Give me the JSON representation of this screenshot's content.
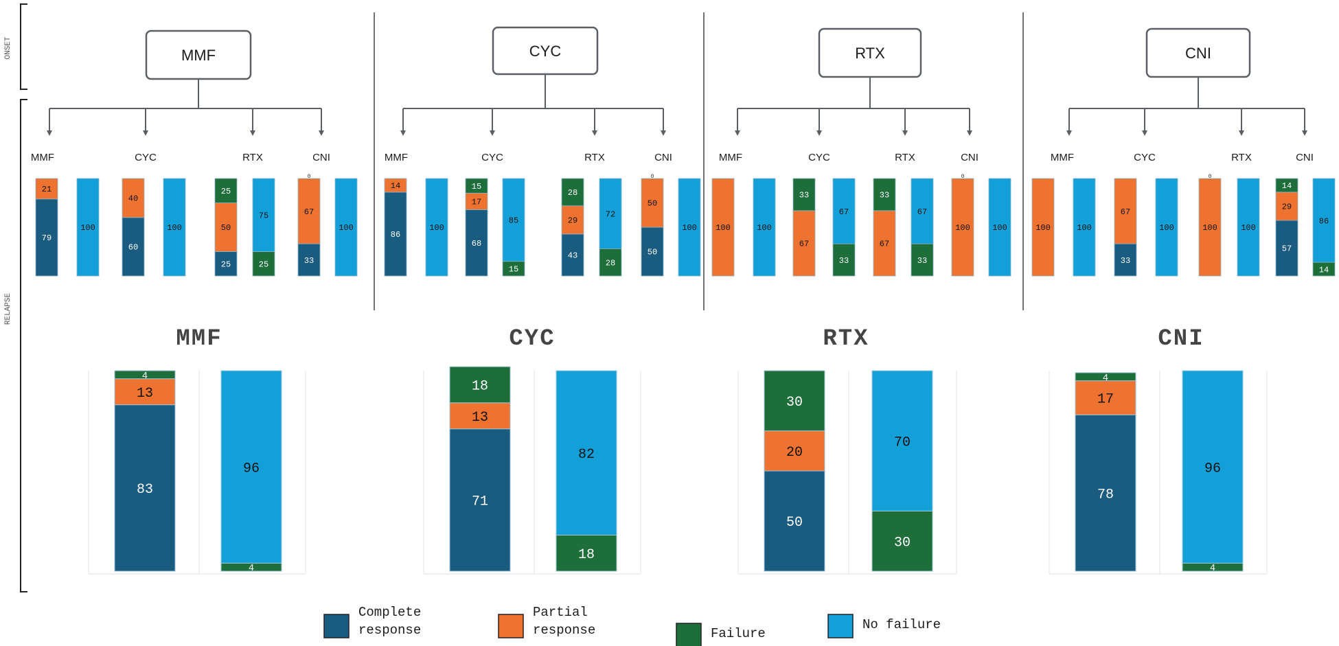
{
  "side_labels": {
    "onset": "ONSET",
    "relapse": "RELAPSE"
  },
  "colors": {
    "complete": "#1a5b80",
    "partial": "#ee7330",
    "failure": "#1e6e3a",
    "nofailure": "#13a0d8",
    "line": "#5a5f66"
  },
  "legend": [
    {
      "key": "complete",
      "lines": [
        "Complete",
        "response"
      ]
    },
    {
      "key": "partial",
      "lines": [
        "Partial",
        "response"
      ]
    },
    {
      "key": "failure",
      "lines": [
        "Failure"
      ]
    },
    {
      "key": "nofailure",
      "lines": [
        "No failure"
      ]
    }
  ],
  "chart_data": [
    {
      "type": "bar",
      "stacked": true,
      "level": "relapse-by-drug",
      "onset_drug": "MMF",
      "categories": [
        "MMF",
        "CYC",
        "RTX",
        "CNI"
      ],
      "bars": [
        [
          {
            "k": "complete",
            "v": 79
          },
          {
            "k": "partial",
            "v": 21
          }
        ],
        [
          {
            "k": "nofailure",
            "v": 100
          }
        ],
        [
          {
            "k": "complete",
            "v": 60
          },
          {
            "k": "partial",
            "v": 40
          }
        ],
        [
          {
            "k": "nofailure",
            "v": 100
          }
        ],
        [
          {
            "k": "complete",
            "v": 25
          },
          {
            "k": "partial",
            "v": 50
          },
          {
            "k": "failure",
            "v": 25
          }
        ],
        [
          {
            "k": "failure",
            "v": 25
          },
          {
            "k": "nofailure",
            "v": 75
          }
        ],
        [
          {
            "k": "complete",
            "v": 33
          },
          {
            "k": "partial",
            "v": 67
          },
          {
            "k": "failure",
            "v": 0
          }
        ],
        [
          {
            "k": "failure",
            "v": 0
          },
          {
            "k": "nofailure",
            "v": 100
          }
        ]
      ]
    },
    {
      "type": "bar",
      "stacked": true,
      "level": "relapse-by-drug",
      "onset_drug": "CYC",
      "categories": [
        "MMF",
        "CYC",
        "RTX",
        "CNI"
      ],
      "bars": [
        [
          {
            "k": "complete",
            "v": 86
          },
          {
            "k": "partial",
            "v": 14
          }
        ],
        [
          {
            "k": "nofailure",
            "v": 100
          }
        ],
        [
          {
            "k": "complete",
            "v": 68
          },
          {
            "k": "partial",
            "v": 17
          },
          {
            "k": "failure",
            "v": 15
          }
        ],
        [
          {
            "k": "failure",
            "v": 15
          },
          {
            "k": "nofailure",
            "v": 85
          }
        ],
        [
          {
            "k": "complete",
            "v": 43
          },
          {
            "k": "partial",
            "v": 29
          },
          {
            "k": "failure",
            "v": 28
          }
        ],
        [
          {
            "k": "failure",
            "v": 28
          },
          {
            "k": "nofailure",
            "v": 72
          }
        ],
        [
          {
            "k": "complete",
            "v": 50
          },
          {
            "k": "partial",
            "v": 50
          },
          {
            "k": "failure",
            "v": 0
          }
        ],
        [
          {
            "k": "failure",
            "v": 0
          },
          {
            "k": "nofailure",
            "v": 100
          }
        ]
      ]
    },
    {
      "type": "bar",
      "stacked": true,
      "level": "relapse-by-drug",
      "onset_drug": "RTX",
      "categories": [
        "MMF",
        "CYC",
        "RTX",
        "CNI"
      ],
      "bars": [
        [
          {
            "k": "partial",
            "v": 100
          }
        ],
        [
          {
            "k": "nofailure",
            "v": 100
          }
        ],
        [
          {
            "k": "partial",
            "v": 67
          },
          {
            "k": "failure",
            "v": 33
          }
        ],
        [
          {
            "k": "failure",
            "v": 33
          },
          {
            "k": "nofailure",
            "v": 67
          }
        ],
        [
          {
            "k": "complete",
            "v": 0
          },
          {
            "k": "partial",
            "v": 67
          },
          {
            "k": "failure",
            "v": 33
          }
        ],
        [
          {
            "k": "failure",
            "v": 33
          },
          {
            "k": "nofailure",
            "v": 67
          }
        ],
        [
          {
            "k": "complete",
            "v": 0
          },
          {
            "k": "partial",
            "v": 100
          },
          {
            "k": "failure",
            "v": 0
          }
        ],
        [
          {
            "k": "failure",
            "v": 0
          },
          {
            "k": "nofailure",
            "v": 100
          }
        ]
      ]
    },
    {
      "type": "bar",
      "stacked": true,
      "level": "relapse-by-drug",
      "onset_drug": "CNI",
      "categories": [
        "MMF",
        "CYC",
        "RTX",
        "CNI"
      ],
      "bars": [
        [
          {
            "k": "partial",
            "v": 100
          }
        ],
        [
          {
            "k": "nofailure",
            "v": 100
          }
        ],
        [
          {
            "k": "complete",
            "v": 33
          },
          {
            "k": "partial",
            "v": 67
          }
        ],
        [
          {
            "k": "nofailure",
            "v": 100
          }
        ],
        [
          {
            "k": "complete",
            "v": 0
          },
          {
            "k": "partial",
            "v": 100
          },
          {
            "k": "failure",
            "v": 0
          }
        ],
        [
          {
            "k": "failure",
            "v": 0
          },
          {
            "k": "nofailure",
            "v": 100
          }
        ],
        [
          {
            "k": "complete",
            "v": 57
          },
          {
            "k": "partial",
            "v": 29
          },
          {
            "k": "failure",
            "v": 14
          }
        ],
        [
          {
            "k": "failure",
            "v": 14
          },
          {
            "k": "nofailure",
            "v": 86
          }
        ]
      ]
    },
    {
      "type": "bar",
      "stacked": true,
      "level": "summary",
      "title": "MMF",
      "bars": [
        [
          {
            "k": "complete",
            "v": 83
          },
          {
            "k": "partial",
            "v": 13
          },
          {
            "k": "failure",
            "v": 4
          }
        ],
        [
          {
            "k": "failure",
            "v": 4
          },
          {
            "k": "nofailure",
            "v": 96
          }
        ]
      ]
    },
    {
      "type": "bar",
      "stacked": true,
      "level": "summary",
      "title": "CYC",
      "bars": [
        [
          {
            "k": "complete",
            "v": 71
          },
          {
            "k": "partial",
            "v": 13
          },
          {
            "k": "failure",
            "v": 18
          }
        ],
        [
          {
            "k": "failure",
            "v": 18
          },
          {
            "k": "nofailure",
            "v": 82
          }
        ]
      ]
    },
    {
      "type": "bar",
      "stacked": true,
      "level": "summary",
      "title": "RTX",
      "bars": [
        [
          {
            "k": "complete",
            "v": 50
          },
          {
            "k": "partial",
            "v": 20
          },
          {
            "k": "failure",
            "v": 30
          }
        ],
        [
          {
            "k": "failure",
            "v": 30
          },
          {
            "k": "nofailure",
            "v": 70
          }
        ]
      ]
    },
    {
      "type": "bar",
      "stacked": true,
      "level": "summary",
      "title": "CNI",
      "bars": [
        [
          {
            "k": "complete",
            "v": 78
          },
          {
            "k": "partial",
            "v": 17
          },
          {
            "k": "failure",
            "v": 4
          }
        ],
        [
          {
            "k": "failure",
            "v": 4
          },
          {
            "k": "nofailure",
            "v": 96
          }
        ]
      ]
    }
  ]
}
